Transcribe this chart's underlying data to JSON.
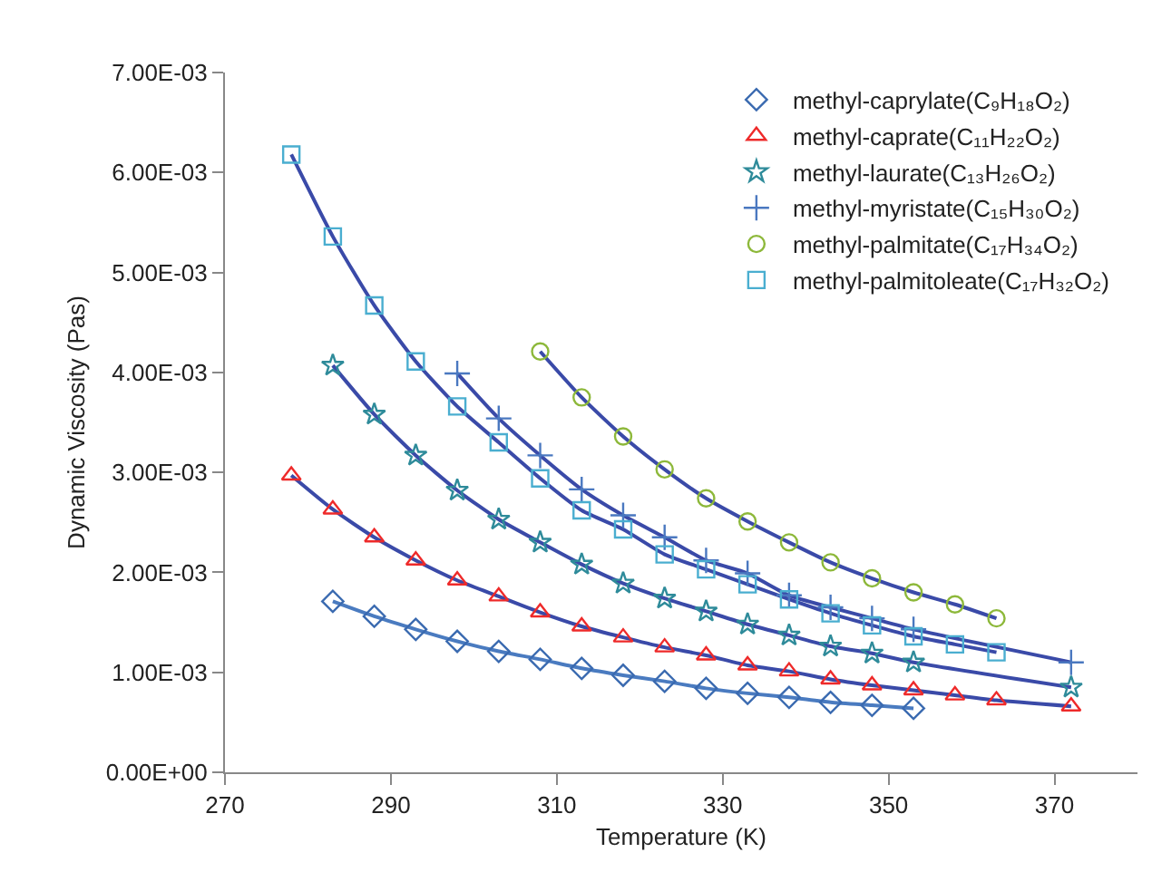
{
  "chart_data": {
    "type": "scatter",
    "xlabel": "Temperature (K)",
    "ylabel": "Dynamic Viscosity (Pas)",
    "xlim": [
      270,
      380
    ],
    "xticks": [
      270,
      290,
      310,
      330,
      350,
      370
    ],
    "ylim": [
      0,
      0.007
    ],
    "yticks": [
      {
        "value": 0,
        "label": "0.00E+00"
      },
      {
        "value": 0.001,
        "label": "1.00E-03"
      },
      {
        "value": 0.002,
        "label": "2.00E-03"
      },
      {
        "value": 0.003,
        "label": "3.00E-03"
      },
      {
        "value": 0.004,
        "label": "4.00E-03"
      },
      {
        "value": 0.005,
        "label": "5.00E-03"
      },
      {
        "value": 0.006,
        "label": "6.00E-03"
      },
      {
        "value": 0.007,
        "label": "7.00E-03"
      }
    ],
    "grid": false,
    "legend": "top right",
    "series": [
      {
        "type": "line",
        "color": "#4a7bc0",
        "marker": "none",
        "line_style": "solid",
        "x": [
          283,
          288,
          293,
          298,
          303,
          308,
          313,
          318,
          323,
          328,
          333,
          338,
          343,
          348,
          353
        ],
        "values": [
          0.00171,
          0.00156,
          0.00143,
          0.00131,
          0.00121,
          0.00113,
          0.00104,
          0.00097,
          0.00091,
          0.00084,
          0.00079,
          0.00075,
          0.0007,
          0.00067,
          0.00064
        ]
      },
      {
        "type": "line",
        "color": "#3a4aa8",
        "marker": "none",
        "line_style": "solid",
        "x": [
          278,
          283,
          288,
          293,
          298,
          303,
          308,
          313,
          318,
          323,
          328,
          333,
          338,
          343,
          348,
          353,
          358,
          363,
          372
        ],
        "values": [
          0.00297,
          0.00263,
          0.00235,
          0.00212,
          0.00192,
          0.00176,
          0.0016,
          0.00146,
          0.00135,
          0.00125,
          0.00117,
          0.00107,
          0.00101,
          0.00093,
          0.00087,
          0.00082,
          0.00077,
          0.00072,
          0.00066
        ]
      },
      {
        "type": "line",
        "color": "#3a4aa8",
        "marker": "none",
        "line_style": "solid",
        "x": [
          283,
          288,
          293,
          298,
          303,
          308,
          313,
          318,
          323,
          328,
          333,
          338,
          343,
          348,
          353,
          372
        ],
        "values": [
          0.00407,
          0.00358,
          0.00317,
          0.00282,
          0.00253,
          0.0023,
          0.00208,
          0.00189,
          0.00174,
          0.00161,
          0.00148,
          0.00137,
          0.00126,
          0.00119,
          0.0011,
          0.00085
        ]
      },
      {
        "type": "line",
        "color": "#3a4aa8",
        "marker": "none",
        "line_style": "solid",
        "x": [
          298,
          303,
          308,
          313,
          318,
          323,
          328,
          333,
          338,
          343,
          348,
          353,
          372
        ],
        "values": [
          0.00399,
          0.00354,
          0.00317,
          0.00283,
          0.00257,
          0.00235,
          0.00212,
          0.00199,
          0.00177,
          0.00165,
          0.00154,
          0.00143,
          0.0011
        ]
      },
      {
        "type": "line",
        "color": "#3a4aa8",
        "marker": "none",
        "line_style": "solid",
        "x": [
          308,
          313,
          318,
          323,
          328,
          333,
          338,
          343,
          348,
          353,
          358,
          363
        ],
        "values": [
          0.00421,
          0.00375,
          0.00336,
          0.00303,
          0.00274,
          0.00251,
          0.0023,
          0.0021,
          0.00194,
          0.0018,
          0.00168,
          0.00154
        ]
      },
      {
        "type": "line",
        "color": "#3a4aa8",
        "marker": "none",
        "line_style": "solid",
        "x": [
          278,
          283,
          288,
          293,
          298,
          303,
          308,
          313,
          318,
          323,
          328,
          333,
          338,
          343,
          348,
          353,
          358,
          363
        ],
        "values": [
          0.00618,
          0.00536,
          0.00467,
          0.00411,
          0.00366,
          0.0033,
          0.00294,
          0.00262,
          0.00243,
          0.00218,
          0.00203,
          0.00188,
          0.00173,
          0.00159,
          0.00147,
          0.00136,
          0.00128,
          0.0012
        ]
      },
      {
        "name": "methyl-caprylate(C₉H₁₈O₂)",
        "color": "#3a6ab0",
        "marker": "diamond",
        "x": [
          283,
          288,
          293,
          298,
          303,
          308,
          313,
          318,
          323,
          328,
          333,
          338,
          343,
          348,
          353
        ],
        "values": [
          0.00171,
          0.00156,
          0.00143,
          0.00131,
          0.00121,
          0.00113,
          0.00104,
          0.00097,
          0.00091,
          0.00084,
          0.00079,
          0.00075,
          0.0007,
          0.00067,
          0.00064
        ]
      },
      {
        "name": "methyl-caprate(C₁₁H₂₂O₂)",
        "color": "#ee2a2a",
        "marker": "triangle",
        "x": [
          278,
          283,
          288,
          293,
          298,
          303,
          308,
          313,
          318,
          323,
          328,
          333,
          338,
          343,
          348,
          353,
          358,
          363,
          372
        ],
        "values": [
          0.00297,
          0.00263,
          0.00235,
          0.00212,
          0.00192,
          0.00176,
          0.0016,
          0.00146,
          0.00135,
          0.00125,
          0.00117,
          0.00107,
          0.00101,
          0.00093,
          0.00087,
          0.00082,
          0.00077,
          0.00072,
          0.00066
        ]
      },
      {
        "name": "methyl-laurate(C₁₃H₂₆O₂)",
        "color": "#2e8b9a",
        "marker": "star",
        "x": [
          283,
          288,
          293,
          298,
          303,
          308,
          313,
          318,
          323,
          328,
          333,
          338,
          343,
          348,
          353,
          372
        ],
        "values": [
          0.00407,
          0.00358,
          0.00317,
          0.00282,
          0.00253,
          0.0023,
          0.00208,
          0.00189,
          0.00174,
          0.00161,
          0.00148,
          0.00137,
          0.00126,
          0.00119,
          0.0011,
          0.00085
        ]
      },
      {
        "name": "methyl-myristate(C₁₅H₃₀O₂)",
        "color": "#4a78c0",
        "marker": "cross",
        "x": [
          298,
          303,
          308,
          313,
          318,
          323,
          328,
          333,
          338,
          343,
          348,
          353,
          372
        ],
        "values": [
          0.00399,
          0.00354,
          0.00317,
          0.00283,
          0.00257,
          0.00235,
          0.00212,
          0.00199,
          0.00177,
          0.00165,
          0.00154,
          0.00143,
          0.0011
        ]
      },
      {
        "name": "methyl-palmitate(C₁₇H₃₄O₂)",
        "color": "#8db83a",
        "marker": "circle",
        "x": [
          308,
          313,
          318,
          323,
          328,
          333,
          338,
          343,
          348,
          353,
          358,
          363
        ],
        "values": [
          0.00421,
          0.00375,
          0.00336,
          0.00303,
          0.00274,
          0.00251,
          0.0023,
          0.0021,
          0.00194,
          0.0018,
          0.00168,
          0.00154
        ]
      },
      {
        "name": "methyl-palmitoleate(C₁₇H₃₂O₂)",
        "color": "#4aaed0",
        "marker": "square",
        "x": [
          278,
          283,
          288,
          293,
          298,
          303,
          308,
          313,
          318,
          323,
          328,
          333,
          338,
          343,
          348,
          353,
          358,
          363
        ],
        "values": [
          0.00618,
          0.00536,
          0.00467,
          0.00411,
          0.00366,
          0.0033,
          0.00294,
          0.00262,
          0.00243,
          0.00218,
          0.00203,
          0.00188,
          0.00173,
          0.00159,
          0.00147,
          0.00136,
          0.00128,
          0.0012
        ]
      }
    ]
  }
}
